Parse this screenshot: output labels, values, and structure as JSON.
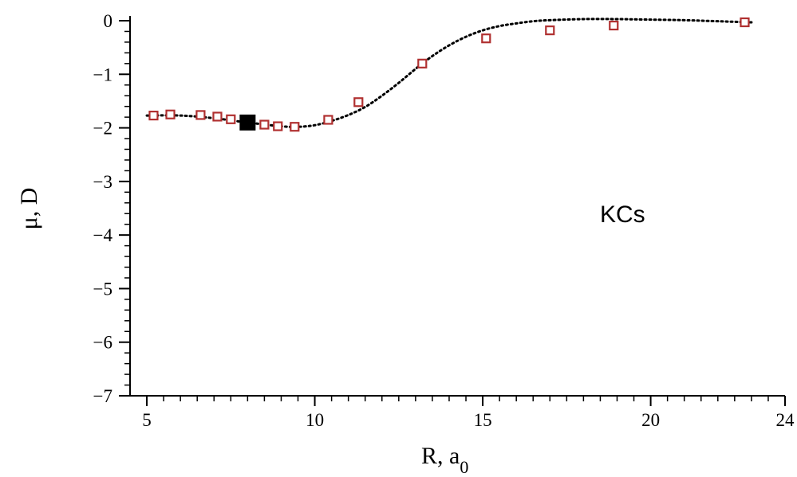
{
  "chart_data": {
    "type": "scatter",
    "xlabel": "R, a",
    "xlabel_sub": "0",
    "ylabel": "μ, D",
    "xlim": [
      4.5,
      24
    ],
    "ylim": [
      -7,
      0
    ],
    "x_ticks": [
      5,
      10,
      15,
      20,
      24
    ],
    "y_ticks": [
      0,
      -1,
      -2,
      -3,
      -4,
      -5,
      -6,
      -7
    ],
    "annotation": "KCs",
    "colors": {
      "markers": "#b03030",
      "curve": "#000000",
      "highlight": "#000000"
    },
    "series": [
      {
        "style": "open-square-markers",
        "points": [
          {
            "x": 5.2,
            "y": -1.77
          },
          {
            "x": 5.7,
            "y": -1.75
          },
          {
            "x": 6.6,
            "y": -1.76
          },
          {
            "x": 7.1,
            "y": -1.79
          },
          {
            "x": 7.5,
            "y": -1.84
          },
          {
            "x": 8.5,
            "y": -1.94
          },
          {
            "x": 8.9,
            "y": -1.97
          },
          {
            "x": 9.4,
            "y": -1.98
          },
          {
            "x": 10.4,
            "y": -1.85
          },
          {
            "x": 11.3,
            "y": -1.52
          },
          {
            "x": 13.2,
            "y": -0.8
          },
          {
            "x": 15.1,
            "y": -0.33
          },
          {
            "x": 17.0,
            "y": -0.18
          },
          {
            "x": 18.9,
            "y": -0.09
          },
          {
            "x": 22.8,
            "y": -0.03
          }
        ]
      },
      {
        "style": "dotted-line",
        "points": [
          {
            "x": 5.0,
            "y": -1.77
          },
          {
            "x": 6.0,
            "y": -1.77
          },
          {
            "x": 7.0,
            "y": -1.82
          },
          {
            "x": 8.0,
            "y": -1.9
          },
          {
            "x": 9.0,
            "y": -1.97
          },
          {
            "x": 9.5,
            "y": -1.98
          },
          {
            "x": 10.0,
            "y": -1.95
          },
          {
            "x": 10.5,
            "y": -1.87
          },
          {
            "x": 11.0,
            "y": -1.76
          },
          {
            "x": 11.5,
            "y": -1.61
          },
          {
            "x": 12.0,
            "y": -1.4
          },
          {
            "x": 12.5,
            "y": -1.16
          },
          {
            "x": 13.0,
            "y": -0.9
          },
          {
            "x": 13.5,
            "y": -0.66
          },
          {
            "x": 14.0,
            "y": -0.46
          },
          {
            "x": 14.5,
            "y": -0.3
          },
          {
            "x": 15.0,
            "y": -0.18
          },
          {
            "x": 15.5,
            "y": -0.1
          },
          {
            "x": 16.0,
            "y": -0.05
          },
          {
            "x": 16.5,
            "y": -0.01
          },
          {
            "x": 17.0,
            "y": 0.01
          },
          {
            "x": 18.0,
            "y": 0.03
          },
          {
            "x": 19.0,
            "y": 0.03
          },
          {
            "x": 20.0,
            "y": 0.02
          },
          {
            "x": 21.0,
            "y": 0.01
          },
          {
            "x": 22.0,
            "y": -0.01
          },
          {
            "x": 23.0,
            "y": -0.03
          }
        ]
      },
      {
        "style": "filled-square-marker",
        "points": [
          {
            "x": 8.0,
            "y": -1.9
          }
        ]
      }
    ]
  }
}
